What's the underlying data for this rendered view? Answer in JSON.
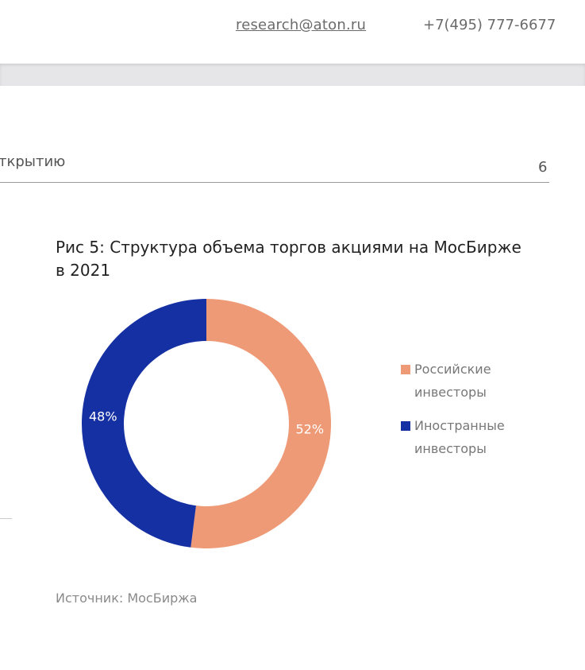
{
  "header": {
    "email": "research@aton.ru",
    "phone": "+7(495) 777-6677"
  },
  "section_title": "ткрытию",
  "page_number": "6",
  "chart_data": {
    "type": "donut",
    "title": "Рис 5: Структура объема торгов акциями на МосБирже в 2021",
    "categories": [
      "Российские инвесторы",
      "Иностранные инвесторы"
    ],
    "values": [
      52,
      48
    ],
    "value_labels": [
      "52%",
      "48%"
    ],
    "colors": [
      "#ef9a76",
      "#1530a3"
    ],
    "legend": "right",
    "source": "Источник: МосБиржа"
  }
}
